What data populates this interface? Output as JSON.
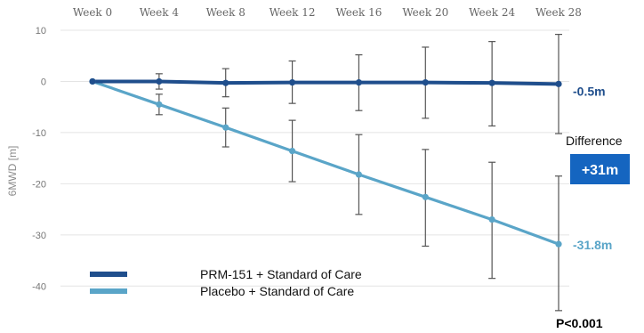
{
  "chart_data": {
    "type": "line",
    "categories": [
      "Week 0",
      "Week 4",
      "Week 8",
      "Week 12",
      "Week 16",
      "Week 20",
      "Week 24",
      "Week 28"
    ],
    "xlabel": "",
    "ylabel": "6MWD [m]",
    "ylim": [
      -45,
      10
    ],
    "yticks": [
      10,
      0,
      -10,
      -20,
      -30,
      -40
    ],
    "grid": true,
    "legend_position": "bottom-left",
    "series": [
      {
        "name": "PRM-151 + Standard of Care",
        "color": "#1f4e8c",
        "values": [
          0,
          0,
          -0.3,
          -0.2,
          -0.2,
          -0.2,
          -0.3,
          -0.5
        ],
        "error_low": [
          0,
          -1.5,
          -3,
          -4.3,
          -5.7,
          -7.2,
          -8.7,
          -10.2
        ],
        "error_high": [
          0,
          1.5,
          2.5,
          4,
          5.2,
          6.7,
          7.8,
          9.2
        ],
        "end_label": "-0.5m"
      },
      {
        "name": "Placebo + Standard of Care",
        "color": "#5aa5c8",
        "values": [
          0,
          -4.5,
          -9,
          -13.6,
          -18.2,
          -22.6,
          -27,
          -31.8
        ],
        "error_low": [
          0,
          -6.5,
          -12.8,
          -19.6,
          -26,
          -32.2,
          -38.5,
          -44.8
        ],
        "error_high": [
          0,
          -2.5,
          -5.2,
          -7.6,
          -10.4,
          -13.3,
          -15.8,
          -18.5
        ],
        "end_label": "-31.8m"
      }
    ],
    "annotations": {
      "difference_title": "Difference",
      "difference_value": "+31m",
      "difference_color": "#1565c0",
      "p_value": "P<0.001"
    }
  }
}
